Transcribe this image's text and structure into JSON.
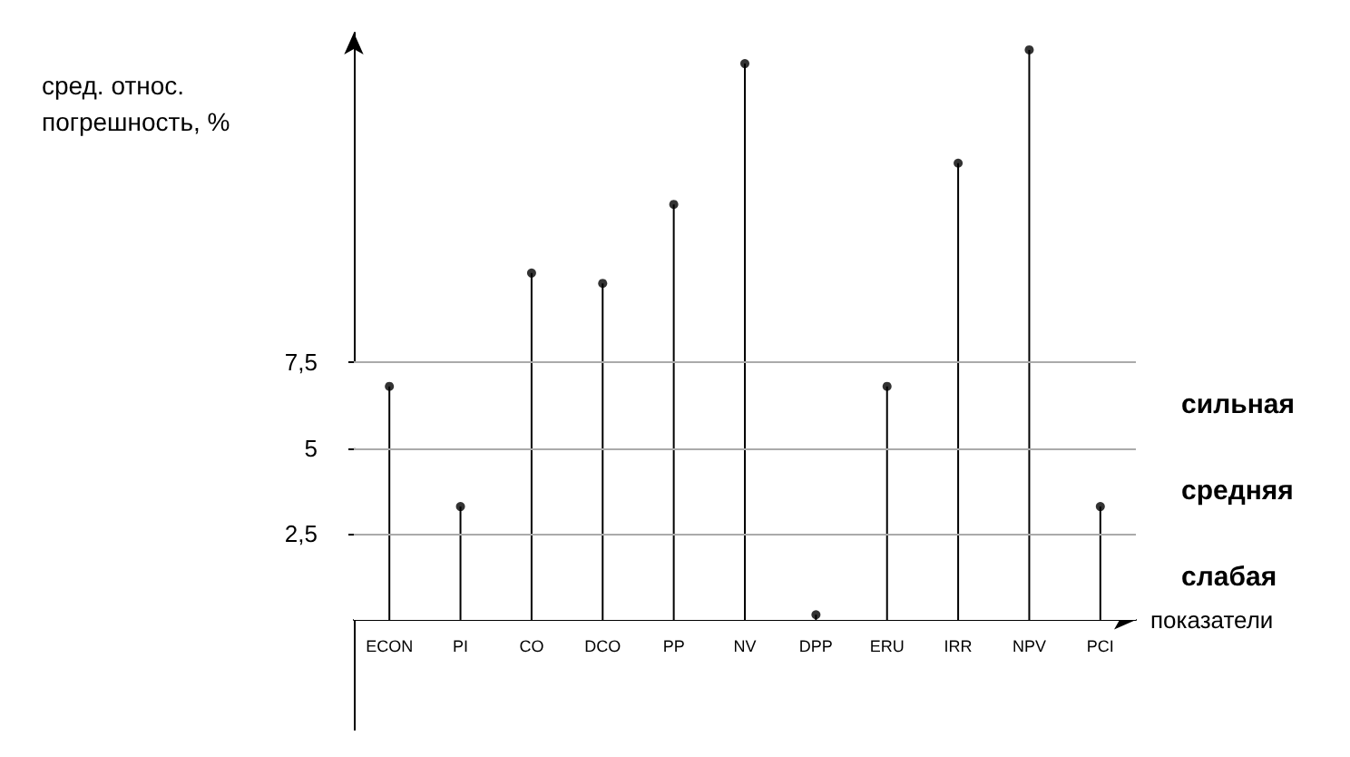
{
  "chart_data": {
    "type": "lollipop",
    "ylabel": "сред. относ.\nпогрешность, %",
    "xlabel": "показатели",
    "categories": [
      "ECON",
      "PI",
      "CO",
      "DCO",
      "PP",
      "NV",
      "DPP",
      "ERU",
      "IRR",
      "NPV",
      "PCI"
    ],
    "values": [
      6.8,
      3.3,
      10.1,
      9.8,
      12.1,
      16.2,
      0.15,
      6.8,
      13.3,
      16.6,
      3.3
    ],
    "color": "#000000",
    "ylim": [
      -3.2,
      17.1
    ],
    "yticks": [
      {
        "value": 2.5,
        "label": "2,5"
      },
      {
        "value": 5,
        "label": "5"
      },
      {
        "value": 7.5,
        "label": "7,5"
      }
    ],
    "grid": "y",
    "marker": "circle",
    "bands": [
      {
        "axis": "y",
        "from": 5,
        "to": 7.5,
        "label": "сильная",
        "color": "#ffffff"
      },
      {
        "axis": "y",
        "from": 2.5,
        "to": 5,
        "label": "средняя",
        "color": "#ffffff"
      },
      {
        "axis": "y",
        "from": 0,
        "to": 2.5,
        "label": "слабая",
        "color": "#ffffff"
      }
    ]
  }
}
